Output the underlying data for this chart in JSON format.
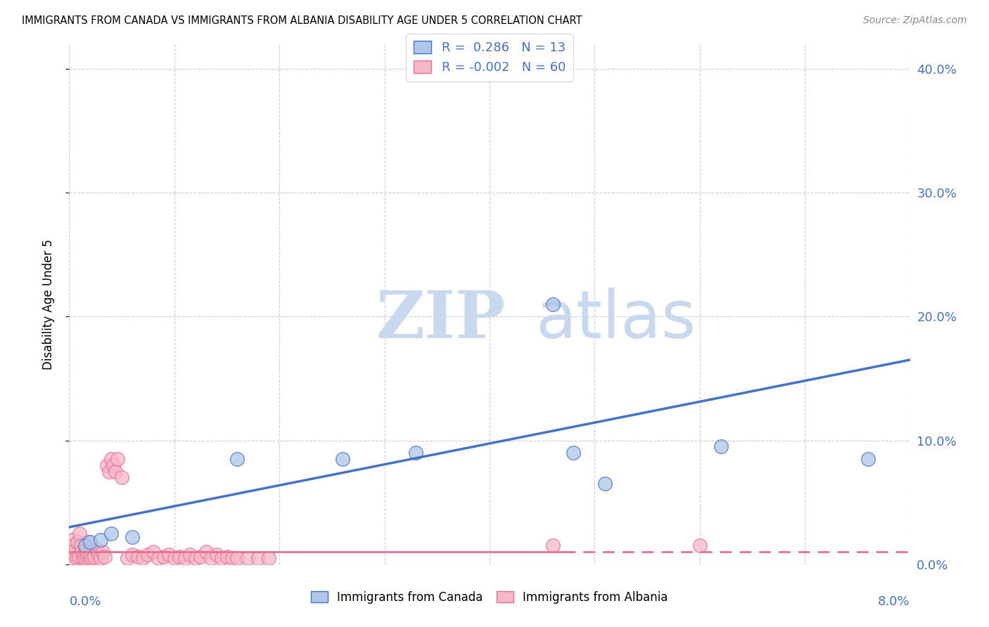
{
  "title": "IMMIGRANTS FROM CANADA VS IMMIGRANTS FROM ALBANIA DISABILITY AGE UNDER 5 CORRELATION CHART",
  "source": "Source: ZipAtlas.com",
  "ylabel": "Disability Age Under 5",
  "xlim": [
    0.0,
    8.0
  ],
  "ylim": [
    0.0,
    42.0
  ],
  "yticks_right": [
    0.0,
    10.0,
    20.0,
    30.0,
    40.0
  ],
  "xticks": [
    0.0,
    1.0,
    2.0,
    3.0,
    4.0,
    5.0,
    6.0,
    7.0,
    8.0
  ],
  "canada_R": 0.286,
  "canada_N": 13,
  "albania_R": -0.002,
  "albania_N": 60,
  "canada_color": "#aec6e8",
  "albania_color": "#f4b8c8",
  "canada_line_color": "#4472c4",
  "albania_line_color": "#e87090",
  "canada_scatter": [
    [
      0.15,
      1.5
    ],
    [
      0.2,
      1.8
    ],
    [
      0.3,
      2.0
    ],
    [
      0.4,
      2.5
    ],
    [
      0.6,
      2.2
    ],
    [
      1.6,
      8.5
    ],
    [
      2.6,
      8.5
    ],
    [
      3.3,
      9.0
    ],
    [
      4.6,
      21.0
    ],
    [
      4.8,
      9.0
    ],
    [
      5.1,
      6.5
    ],
    [
      6.2,
      9.5
    ],
    [
      7.6,
      8.5
    ]
  ],
  "albania_scatter": [
    [
      0.02,
      0.5
    ],
    [
      0.03,
      2.0
    ],
    [
      0.04,
      1.5
    ],
    [
      0.05,
      0.8
    ],
    [
      0.06,
      1.2
    ],
    [
      0.07,
      0.5
    ],
    [
      0.08,
      1.8
    ],
    [
      0.09,
      0.6
    ],
    [
      0.1,
      2.5
    ],
    [
      0.11,
      1.5
    ],
    [
      0.12,
      1.0
    ],
    [
      0.13,
      0.5
    ],
    [
      0.14,
      0.8
    ],
    [
      0.15,
      0.5
    ],
    [
      0.16,
      1.2
    ],
    [
      0.17,
      0.6
    ],
    [
      0.18,
      1.8
    ],
    [
      0.19,
      0.5
    ],
    [
      0.2,
      0.8
    ],
    [
      0.22,
      0.5
    ],
    [
      0.24,
      0.6
    ],
    [
      0.26,
      1.2
    ],
    [
      0.28,
      0.8
    ],
    [
      0.3,
      0.5
    ],
    [
      0.32,
      1.0
    ],
    [
      0.34,
      0.6
    ],
    [
      0.36,
      8.0
    ],
    [
      0.38,
      7.5
    ],
    [
      0.4,
      8.5
    ],
    [
      0.42,
      8.0
    ],
    [
      0.44,
      7.5
    ],
    [
      0.46,
      8.5
    ],
    [
      0.5,
      7.0
    ],
    [
      0.55,
      0.5
    ],
    [
      0.6,
      0.8
    ],
    [
      0.65,
      0.6
    ],
    [
      0.7,
      0.5
    ],
    [
      0.75,
      0.8
    ],
    [
      0.8,
      1.0
    ],
    [
      0.85,
      0.5
    ],
    [
      0.9,
      0.6
    ],
    [
      0.95,
      0.8
    ],
    [
      1.0,
      0.5
    ],
    [
      1.05,
      0.6
    ],
    [
      1.1,
      0.5
    ],
    [
      1.15,
      0.8
    ],
    [
      1.2,
      0.5
    ],
    [
      1.25,
      0.6
    ],
    [
      1.3,
      1.0
    ],
    [
      1.35,
      0.5
    ],
    [
      1.4,
      0.8
    ],
    [
      1.45,
      0.5
    ],
    [
      1.5,
      0.6
    ],
    [
      1.55,
      0.5
    ],
    [
      1.6,
      0.5
    ],
    [
      1.7,
      0.5
    ],
    [
      1.8,
      0.5
    ],
    [
      1.9,
      0.5
    ],
    [
      4.6,
      1.5
    ],
    [
      6.0,
      1.5
    ]
  ],
  "canada_line_x0": 0.0,
  "canada_line_y0": 3.0,
  "canada_line_x1": 8.0,
  "canada_line_y1": 16.5,
  "albania_line_y": 1.0,
  "albania_solid_end": 4.7,
  "background_color": "#ffffff",
  "grid_color": "#cccccc",
  "watermark_zip": "ZIP",
  "watermark_atlas": "atlas",
  "legend_canada_label": "R =  0.286   N = 13",
  "legend_albania_label": "R = -0.002   N = 60",
  "bottom_legend_canada": "Immigrants from Canada",
  "bottom_legend_albania": "Immigrants from Albania"
}
